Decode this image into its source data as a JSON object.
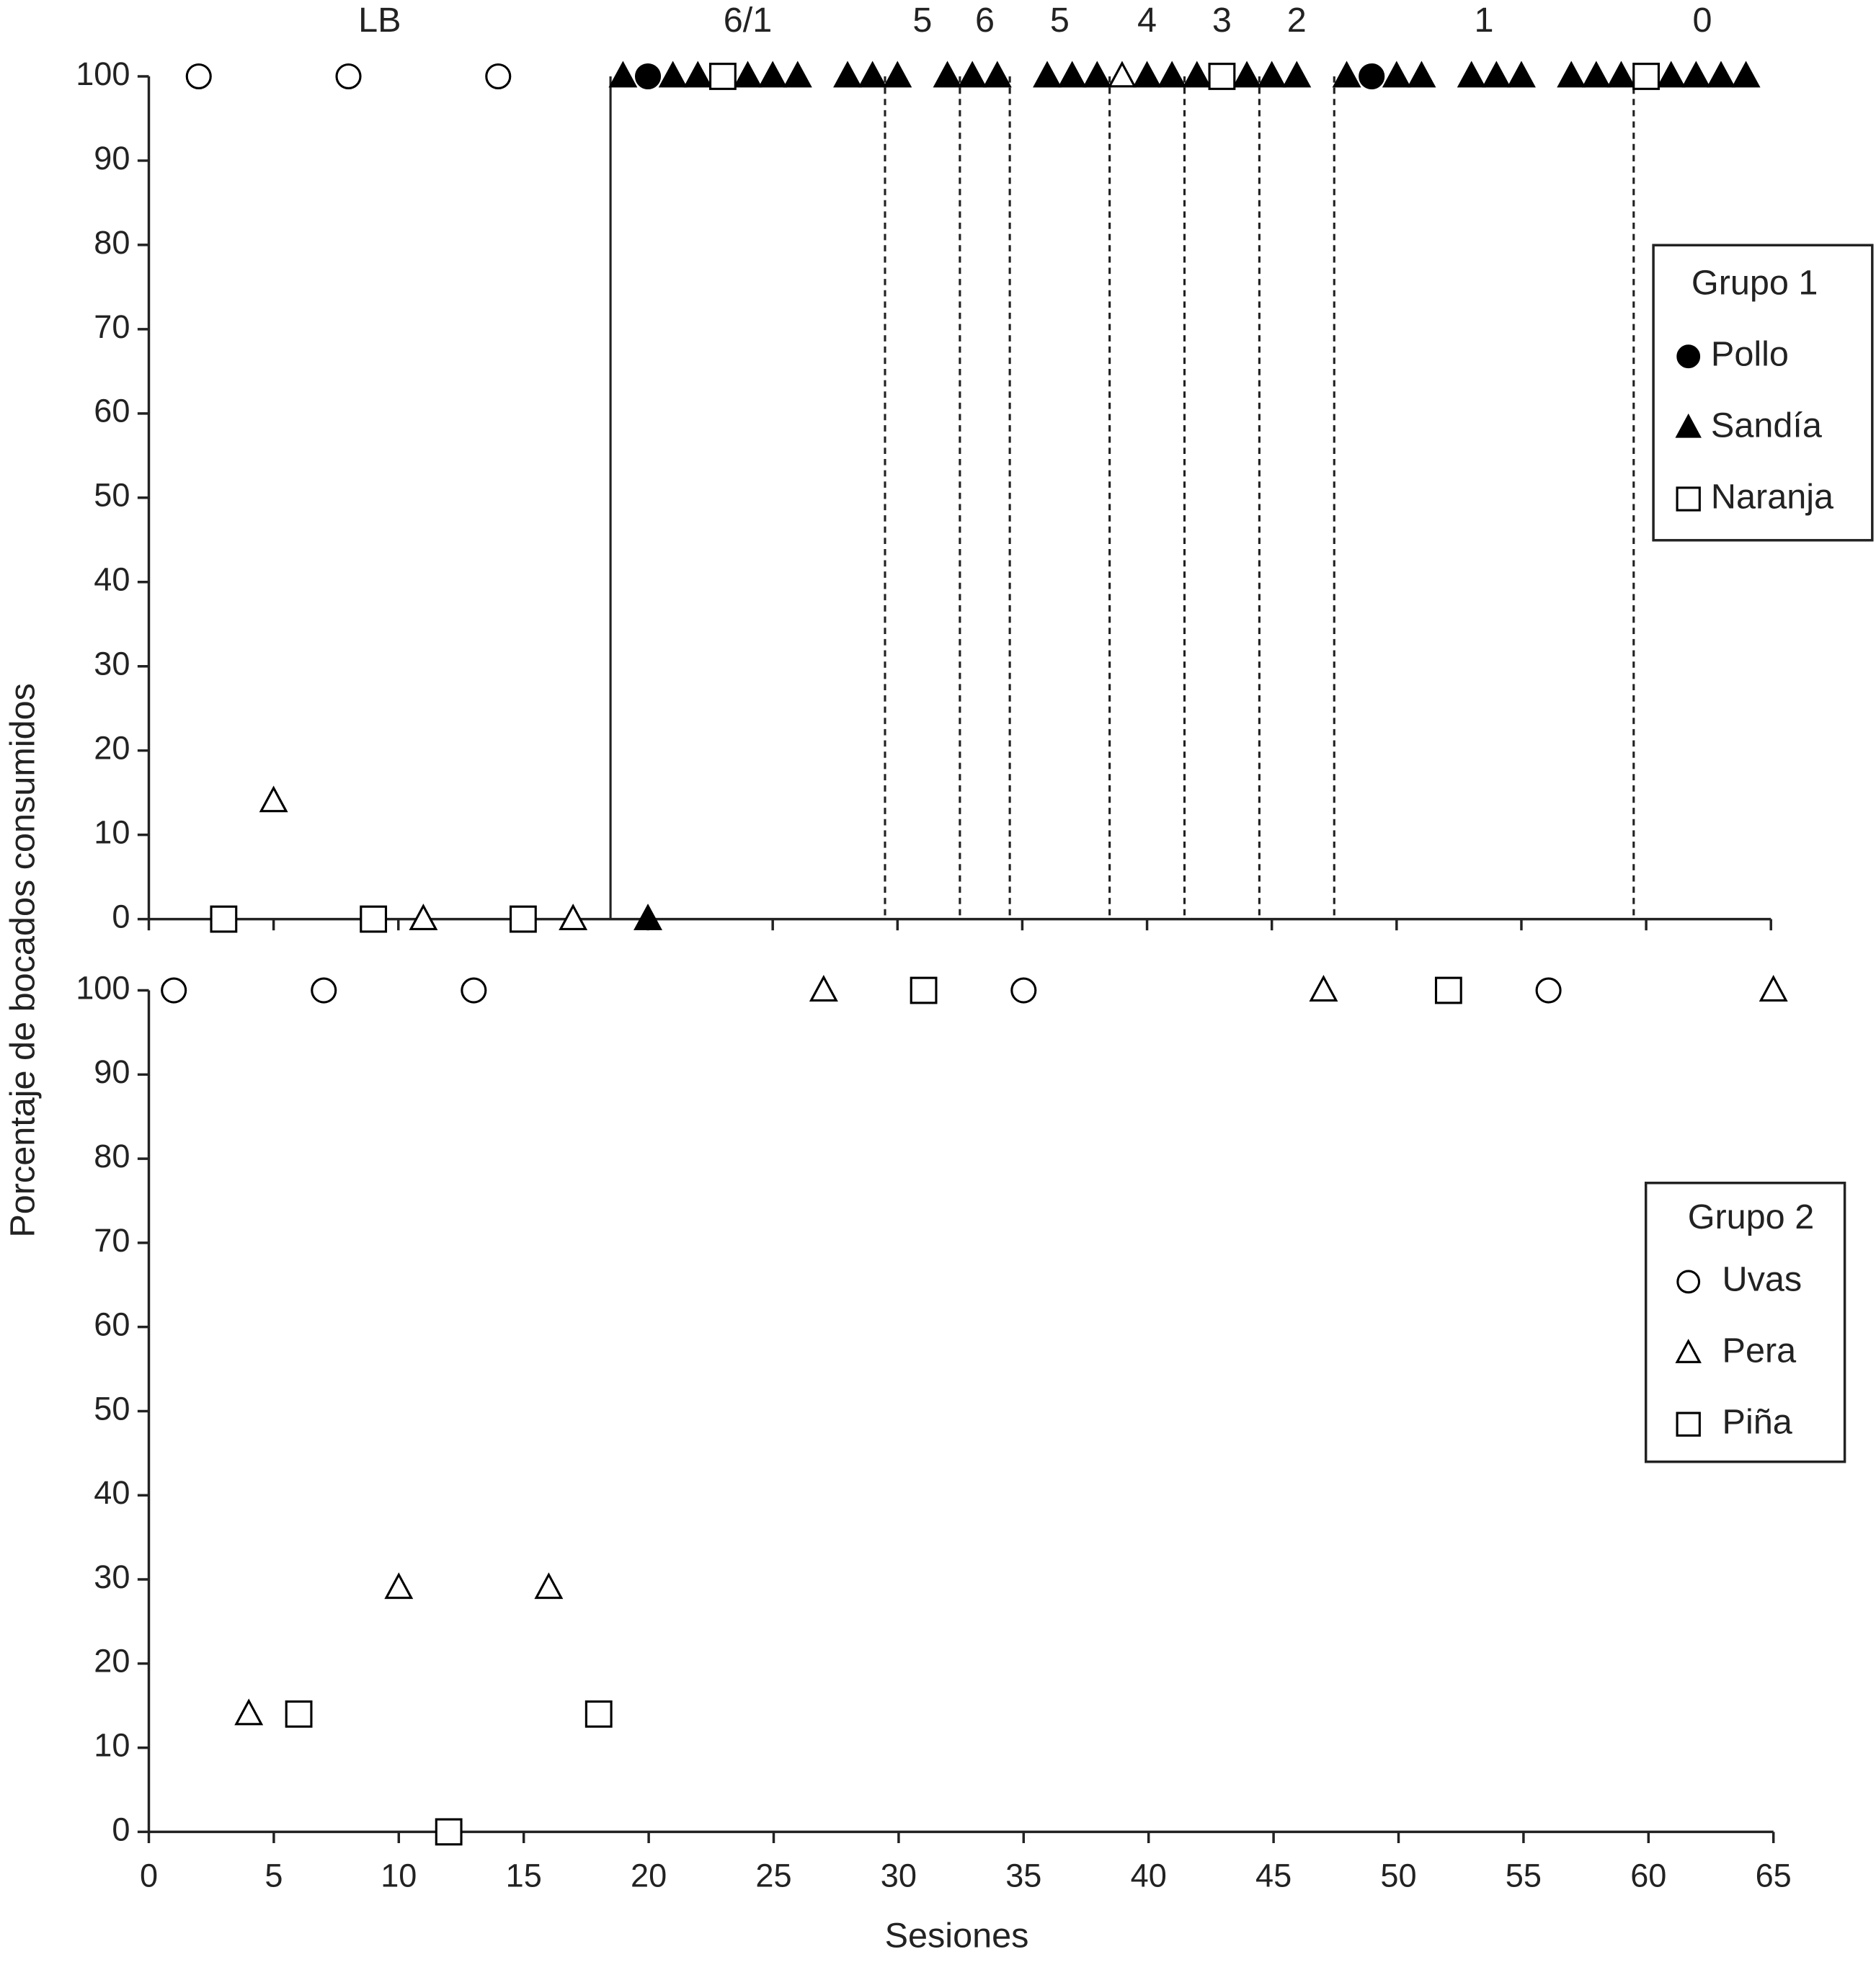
{
  "chart_data": [
    {
      "type": "scatter",
      "ylabel": "Porcentaje de bocados consumidos",
      "xlim": [
        0,
        65
      ],
      "xticks": [
        0,
        5,
        10,
        15,
        20,
        25,
        30,
        35,
        40,
        45,
        50,
        55,
        60,
        65
      ],
      "xtick_labels": false,
      "ylim": [
        0,
        100
      ],
      "yticks": [
        0,
        10,
        20,
        30,
        40,
        50,
        60,
        70,
        80,
        90,
        100
      ],
      "phase_lines": [
        18.5,
        29.5,
        32.5,
        34.5,
        38.5,
        41.5,
        44.5,
        47.5,
        59.5
      ],
      "phase_line_styles": [
        "solid",
        "dashed",
        "dashed",
        "dashed",
        "dashed",
        "dashed",
        "dashed",
        "dashed",
        "dashed"
      ],
      "phase_labels": [
        "LB",
        "6/1",
        "5",
        "6",
        "5",
        "4",
        "3",
        "2",
        "1",
        "0"
      ],
      "legend_title": "Grupo 1",
      "legend_position": "upper right",
      "series": [
        {
          "name": "Pollo",
          "marker": "circle",
          "filled": true,
          "color": "#000000",
          "x": [
            20,
            49
          ],
          "values": [
            100,
            100
          ]
        },
        {
          "name": "Sandía",
          "marker": "triangle",
          "filled": true,
          "color": "#000000",
          "x": [
            19,
            20,
            21,
            22,
            24,
            25,
            26,
            28,
            29,
            30,
            32,
            33,
            34,
            36,
            37,
            38,
            40,
            41,
            42,
            44,
            45,
            46,
            48,
            50,
            51,
            53,
            54,
            55,
            57,
            58,
            59,
            61,
            62,
            63,
            64
          ],
          "values": [
            100,
            0,
            100,
            100,
            100,
            100,
            100,
            100,
            100,
            100,
            100,
            100,
            100,
            100,
            100,
            100,
            100,
            100,
            100,
            100,
            100,
            100,
            100,
            100,
            100,
            100,
            100,
            100,
            100,
            100,
            100,
            100,
            100,
            100,
            100
          ]
        },
        {
          "name": "Naranja",
          "marker": "square",
          "filled": false,
          "color": "#000000",
          "x": [
            3,
            9,
            15,
            23,
            43,
            60
          ],
          "values": [
            0,
            0,
            0,
            100,
            100,
            100
          ]
        },
        {
          "marker": "circle",
          "filled": false,
          "color": "#000000",
          "x": [
            2,
            8,
            14
          ],
          "values": [
            100,
            100,
            100
          ]
        },
        {
          "marker": "triangle",
          "filled": false,
          "color": "#000000",
          "x": [
            5,
            11,
            17,
            39
          ],
          "values": [
            14,
            0,
            0,
            100
          ]
        }
      ]
    },
    {
      "type": "scatter",
      "xlabel": "Sesiones",
      "xlim": [
        0,
        65
      ],
      "xticks": [
        0,
        5,
        10,
        15,
        20,
        25,
        30,
        35,
        40,
        45,
        50,
        55,
        60,
        65
      ],
      "xtick_labels": true,
      "ylim": [
        0,
        100
      ],
      "yticks": [
        0,
        10,
        20,
        30,
        40,
        50,
        60,
        70,
        80,
        90,
        100
      ],
      "legend_title": "Grupo 2",
      "legend_position": "right",
      "series": [
        {
          "name": "Uvas",
          "marker": "circle",
          "filled": false,
          "color": "#000000",
          "x": [
            1,
            7,
            13,
            35,
            56
          ],
          "values": [
            100,
            100,
            100,
            100,
            100
          ]
        },
        {
          "name": "Pera",
          "marker": "triangle",
          "filled": false,
          "color": "#000000",
          "x": [
            4,
            10,
            16,
            27,
            47,
            65
          ],
          "values": [
            14,
            29,
            29,
            100,
            100,
            100
          ]
        },
        {
          "name": "Piña",
          "marker": "square",
          "filled": false,
          "color": "#000000",
          "x": [
            6,
            12,
            18,
            31,
            52
          ],
          "values": [
            14,
            0,
            14,
            100,
            100
          ]
        }
      ]
    }
  ]
}
